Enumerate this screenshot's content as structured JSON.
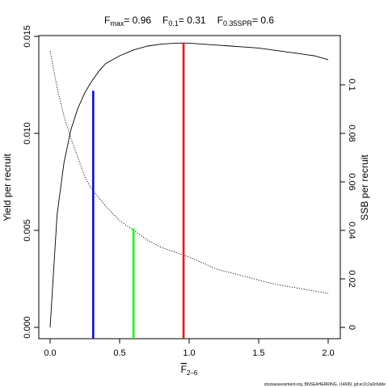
{
  "chart_data": {
    "type": "line",
    "title": {
      "fmax_label": "F",
      "fmax_sub": "max",
      "fmax_value": "= 0.96",
      "f01_label": "F",
      "f01_sub": "0.1",
      "f01_value": "= 0.31",
      "fspr_label": "F",
      "fspr_sub": "0.35SPR",
      "fspr_value": "= 0.6"
    },
    "xlabel": {
      "main": "F",
      "sub": "2–6"
    },
    "ylabel_left": "Yield per recruit",
    "ylabel_right": "SSB per recruit",
    "footer": "stockassessment.org, BNSEAHERRING, r14699, git:ec2c2a0c6dde",
    "xlim": [
      0,
      2
    ],
    "ylim_left": [
      0,
      0.015
    ],
    "ylim_right": [
      0,
      0.115
    ],
    "x_ticks": [
      0,
      0.5,
      1.0,
      1.5,
      2.0
    ],
    "x_tick_labels": [
      "0.0",
      "0.5",
      "1.0",
      "1.5",
      "2.0"
    ],
    "y_left_ticks": [
      0,
      0.005,
      0.01,
      0.015
    ],
    "y_left_tick_labels": [
      "0.000",
      "0.005",
      "0.010",
      "0.015"
    ],
    "y_right_ticks": [
      0,
      0.02,
      0.04,
      0.06,
      0.08,
      0.1
    ],
    "y_right_tick_labels": [
      "0",
      "0.02",
      "0.04",
      "0.06",
      "0.08",
      "0.1"
    ],
    "series": [
      {
        "axis": "left",
        "style": "solid",
        "x": [
          0,
          0.05,
          0.1,
          0.15,
          0.2,
          0.25,
          0.3,
          0.35,
          0.4,
          0.5,
          0.6,
          0.7,
          0.8,
          0.9,
          0.96,
          1.0,
          1.1,
          1.2,
          1.3,
          1.4,
          1.5,
          1.6,
          1.7,
          1.8,
          1.9,
          2.0
        ],
        "y": [
          0.0,
          0.0058,
          0.0085,
          0.0102,
          0.0113,
          0.0121,
          0.0127,
          0.0132,
          0.0136,
          0.014,
          0.0143,
          0.0145,
          0.0146,
          0.01465,
          0.01466,
          0.01465,
          0.0146,
          0.01455,
          0.0145,
          0.01445,
          0.0144,
          0.0143,
          0.0142,
          0.0141,
          0.014,
          0.0138
        ]
      },
      {
        "axis": "right",
        "style": "dotted",
        "x": [
          0,
          0.05,
          0.1,
          0.15,
          0.2,
          0.25,
          0.3,
          0.4,
          0.5,
          0.6,
          0.7,
          0.8,
          0.9,
          1.0,
          1.2,
          1.4,
          1.6,
          1.8,
          2.0
        ],
        "y": [
          0.114,
          0.099,
          0.087,
          0.078,
          0.07,
          0.062,
          0.057,
          0.05,
          0.044,
          0.04,
          0.036,
          0.033,
          0.031,
          0.029,
          0.024,
          0.021,
          0.018,
          0.016,
          0.014
        ]
      }
    ],
    "reference_lines": [
      {
        "name": "F0.1",
        "x": 0.31,
        "y_top": 0.0122,
        "color": "#0000ff"
      },
      {
        "name": "F0.35SPR",
        "x": 0.6,
        "y_top": 0.0051,
        "color": "#00ff00"
      },
      {
        "name": "Fmax",
        "x": 0.96,
        "y_top": 0.01466,
        "color": "#ff0000"
      }
    ],
    "grid": false
  }
}
